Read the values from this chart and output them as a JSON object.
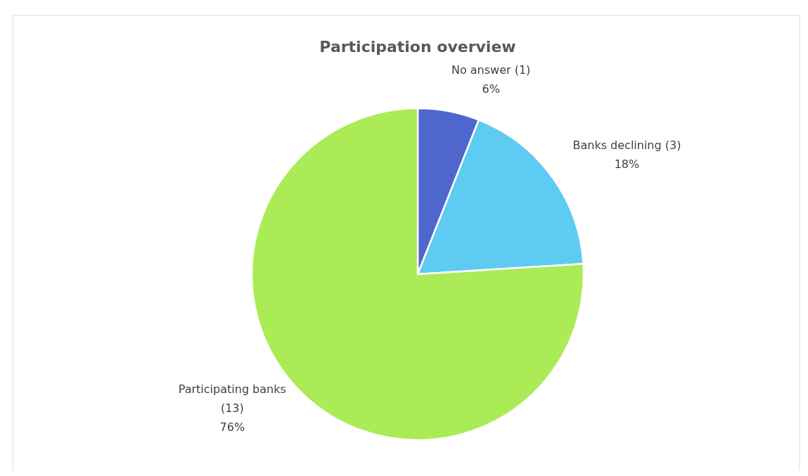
{
  "chart_data": {
    "type": "pie",
    "title": "Participation overview",
    "categories": [
      "No answer (1)",
      "Banks declining (3)",
      "Participating banks (13)"
    ],
    "values": [
      6,
      18,
      76
    ],
    "value_labels": [
      "6%",
      "18%",
      "76%"
    ],
    "colors": [
      "#4f67cc",
      "#5ecbf2",
      "#abeb55"
    ]
  }
}
